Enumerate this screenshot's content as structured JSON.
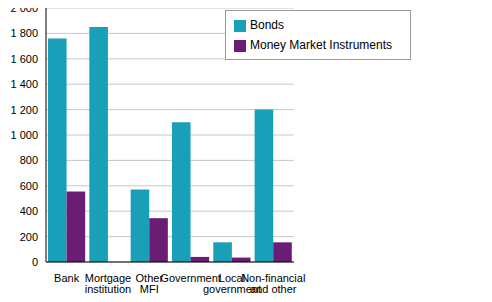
{
  "chart_data": {
    "type": "bar",
    "categories": [
      "Bank",
      "Mortgage institution",
      "Other MFI",
      "Government",
      "Local government",
      "Non-financial and other"
    ],
    "series": [
      {
        "name": "Bonds",
        "color": "#1a9fb8",
        "values": [
          1760,
          1850,
          570,
          1100,
          155,
          1200
        ]
      },
      {
        "name": "Money Market Instruments",
        "color": "#6b1c75",
        "values": [
          555,
          0,
          345,
          40,
          35,
          155
        ]
      }
    ],
    "ylim": [
      0,
      2000
    ],
    "yticks": [
      0,
      200,
      400,
      600,
      800,
      {
        "value": 1000,
        "label": "1 000"
      },
      {
        "value": 1200,
        "label": "1 200"
      },
      {
        "value": 1400,
        "label": "1 400"
      },
      {
        "value": 1600,
        "label": "1 600"
      },
      {
        "value": 1800,
        "label": "1 800"
      },
      {
        "value": 2000,
        "label": "2 000"
      }
    ],
    "grid": true,
    "legend": "top right"
  }
}
